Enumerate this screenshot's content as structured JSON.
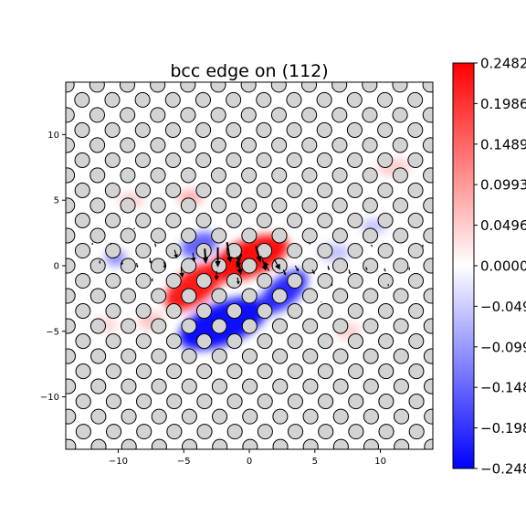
{
  "chart_data": {
    "type": "heatmap",
    "title": "bcc edge on (112)",
    "xlabel": "",
    "ylabel": "",
    "xlim": [
      -14,
      14
    ],
    "ylim": [
      -14,
      14
    ],
    "x_ticks": [
      -10,
      -5,
      0,
      5,
      10
    ],
    "y_ticks": [
      -10,
      -5,
      0,
      5,
      10
    ],
    "x_tick_labels": [
      "−10",
      "−5",
      "0",
      "5",
      "10"
    ],
    "y_tick_labels": [
      "−10",
      "−5",
      "0",
      "5",
      "10"
    ],
    "colormap": {
      "name": "bwr",
      "min": -0.2482,
      "max": 0.2482,
      "low_color": "#0000ff",
      "mid_color": "#ffffff",
      "high_color": "#ff0000"
    },
    "colorbar_ticks": [
      0.2482,
      0.1986,
      0.1489,
      0.0993,
      0.0496,
      0.0,
      -0.0496,
      -0.0993,
      -0.1489,
      -0.1986,
      -0.2482
    ],
    "colorbar_tick_labels": [
      "0.2482",
      "0.1986",
      "0.1489",
      "0.0993",
      "0.0496",
      "0.0000",
      "−0.0496",
      "−0.0993",
      "−0.1489",
      "−0.1986",
      "−0.2482"
    ],
    "field_blobs": [
      {
        "x": 0.0,
        "y": 0.6,
        "sx": 3.2,
        "sy": 1.4,
        "rot_deg": 22,
        "value": 0.25
      },
      {
        "x": -4.2,
        "y": -1.6,
        "sx": 2.6,
        "sy": 1.3,
        "rot_deg": 35,
        "value": 0.24
      },
      {
        "x": -2.0,
        "y": -4.4,
        "sx": 3.6,
        "sy": 1.6,
        "rot_deg": 22,
        "value": -0.25
      },
      {
        "x": 2.6,
        "y": -2.0,
        "sx": 2.2,
        "sy": 1.1,
        "rot_deg": 40,
        "value": -0.22
      },
      {
        "x": -3.8,
        "y": 1.6,
        "sx": 1.5,
        "sy": 0.9,
        "rot_deg": 20,
        "value": -0.16
      },
      {
        "x": -10.2,
        "y": 0.6,
        "sx": 0.8,
        "sy": 0.6,
        "rot_deg": 0,
        "value": -0.12
      },
      {
        "x": -4.5,
        "y": 5.2,
        "sx": 1.0,
        "sy": 0.6,
        "rot_deg": 0,
        "value": 0.08
      },
      {
        "x": -9.0,
        "y": 5.0,
        "sx": 1.0,
        "sy": 0.6,
        "rot_deg": 0,
        "value": 0.05
      },
      {
        "x": 11.0,
        "y": 7.5,
        "sx": 1.3,
        "sy": 0.7,
        "rot_deg": 0,
        "value": 0.05
      },
      {
        "x": 9.5,
        "y": 3.0,
        "sx": 1.0,
        "sy": 0.6,
        "rot_deg": 0,
        "value": -0.06
      },
      {
        "x": 7.5,
        "y": -5.0,
        "sx": 1.0,
        "sy": 0.6,
        "rot_deg": 0,
        "value": 0.05
      },
      {
        "x": -11.0,
        "y": -4.5,
        "sx": 1.0,
        "sy": 0.6,
        "rot_deg": 0,
        "value": 0.04
      },
      {
        "x": 6.5,
        "y": 1.0,
        "sx": 1.2,
        "sy": 0.7,
        "rot_deg": 0,
        "value": -0.06
      },
      {
        "x": -7.5,
        "y": -4.2,
        "sx": 1.0,
        "sy": 0.7,
        "rot_deg": 0,
        "value": 0.06
      }
    ],
    "lattice": {
      "a1": [
        2.31,
        0.0
      ],
      "a2": [
        1.15,
        1.15
      ],
      "origin": [
        0.0,
        0.0
      ],
      "atom_radius": 0.56,
      "atom_fill": "#d3d3d3",
      "atom_stroke": "#000000"
    },
    "arrows": [
      {
        "x": -3.4,
        "y": 1.3,
        "dx": 0.1,
        "dy": -1.3
      },
      {
        "x": -2.4,
        "y": 1.4,
        "dx": 0.0,
        "dy": -1.7
      },
      {
        "x": -1.7,
        "y": 1.8,
        "dx": 0.3,
        "dy": -1.8
      },
      {
        "x": -0.9,
        "y": 0.7,
        "dx": 0.3,
        "dy": -1.6
      },
      {
        "x": -0.6,
        "y": 0.9,
        "dx": -0.4,
        "dy": -1.2
      },
      {
        "x": 0.5,
        "y": 1.5,
        "dx": 0.4,
        "dy": -1.4
      },
      {
        "x": 1.0,
        "y": 0.5,
        "dx": 0.3,
        "dy": -1.0
      },
      {
        "x": 1.5,
        "y": -0.4,
        "dx": -0.4,
        "dy": 0.8
      },
      {
        "x": 1.9,
        "y": 0.5,
        "dx": 0.5,
        "dy": -0.9
      },
      {
        "x": -5.2,
        "y": -0.1,
        "dx": 0.1,
        "dy": -0.9
      },
      {
        "x": -5.7,
        "y": 1.2,
        "dx": 0.2,
        "dy": -0.7
      },
      {
        "x": -4.3,
        "y": 1.0,
        "dx": 0.1,
        "dy": -0.8
      },
      {
        "x": -2.5,
        "y": -0.4,
        "dx": 0.0,
        "dy": -0.8
      },
      {
        "x": -0.9,
        "y": -0.9,
        "dx": 0.1,
        "dy": -0.6
      },
      {
        "x": 2.6,
        "y": -0.3,
        "dx": 0.2,
        "dy": -0.5
      },
      {
        "x": 3.5,
        "y": 0.0,
        "dx": 0.3,
        "dy": -0.5
      },
      {
        "x": -6.5,
        "y": 0.3,
        "dx": 0.1,
        "dy": -0.6
      },
      {
        "x": -7.6,
        "y": 0.6,
        "dx": 0.1,
        "dy": -0.5
      },
      {
        "x": -8.6,
        "y": 0.2,
        "dx": 0.1,
        "dy": -0.4
      },
      {
        "x": -9.7,
        "y": 0.4,
        "dx": 0.0,
        "dy": -0.4
      },
      {
        "x": -11.4,
        "y": 0.4,
        "dx": 0.0,
        "dy": -0.3
      },
      {
        "x": 4.8,
        "y": -0.3,
        "dx": 0.2,
        "dy": -0.4
      },
      {
        "x": 6.0,
        "y": 0.0,
        "dx": 0.1,
        "dy": -0.4
      },
      {
        "x": 7.6,
        "y": -0.3,
        "dx": 0.1,
        "dy": -0.4
      },
      {
        "x": 8.9,
        "y": -0.1,
        "dx": 0.1,
        "dy": -0.3
      },
      {
        "x": 10.3,
        "y": -0.2,
        "dx": 0.1,
        "dy": -0.3
      },
      {
        "x": 12.2,
        "y": -0.1,
        "dx": 0.0,
        "dy": -0.3
      },
      {
        "x": -12.0,
        "y": 1.6,
        "dx": 0.1,
        "dy": 0.2
      },
      {
        "x": -10.6,
        "y": 1.6,
        "dx": 0.1,
        "dy": 0.2
      },
      {
        "x": -7.2,
        "y": 1.7,
        "dx": 0.1,
        "dy": -0.3
      },
      {
        "x": 4.5,
        "y": 1.8,
        "dx": 0.2,
        "dy": -0.2
      },
      {
        "x": 9.3,
        "y": 1.6,
        "dx": 0.1,
        "dy": -0.2
      },
      {
        "x": 13.2,
        "y": 1.6,
        "dx": 0.1,
        "dy": -0.2
      },
      {
        "x": -7.4,
        "y": -1.2,
        "dx": 0.0,
        "dy": 0.3
      },
      {
        "x": 6.3,
        "y": -1.3,
        "dx": 0.0,
        "dy": -0.3
      },
      {
        "x": 10.6,
        "y": -1.4,
        "dx": 0.0,
        "dy": -0.2
      },
      {
        "x": -8.8,
        "y": 2.8,
        "dx": 0.1,
        "dy": 0.1
      },
      {
        "x": -6.0,
        "y": 2.9,
        "dx": 0.1,
        "dy": 0.0
      },
      {
        "x": 6.7,
        "y": 2.8,
        "dx": 0.1,
        "dy": 0.0
      },
      {
        "x": -9.5,
        "y": -2.8,
        "dx": 0.0,
        "dy": 0.1
      },
      {
        "x": 5.5,
        "y": -2.8,
        "dx": 0.0,
        "dy": 0.1
      }
    ]
  }
}
